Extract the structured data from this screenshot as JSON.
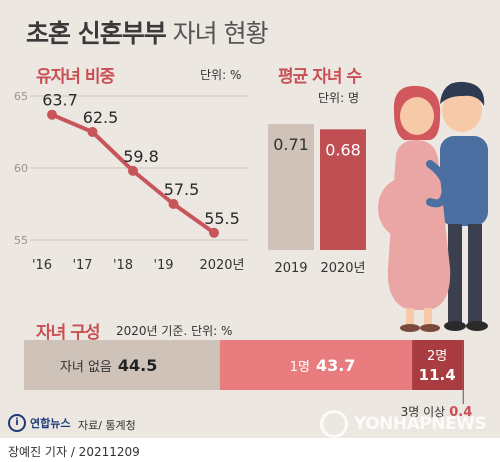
{
  "title": {
    "bold": "초혼 신혼부부",
    "light": "자녀 현황"
  },
  "colors": {
    "accent": "#c84f54",
    "line": "#c8555a",
    "grey_bar": "#cfc3b9",
    "red_bar": "#c04f54",
    "pink_bar": "#e87c7e",
    "dark_red": "#a83c41",
    "background": "#ece7e1"
  },
  "chart_data": [
    {
      "type": "line",
      "title": "유자녀 비중",
      "unit": "단위: %",
      "categories": [
        "'16",
        "'17",
        "'18",
        "'19",
        "2020년"
      ],
      "values": [
        63.7,
        62.5,
        59.8,
        57.5,
        55.5
      ],
      "ylim": [
        55,
        65
      ],
      "yticks": [
        55,
        60,
        65
      ],
      "grid": true
    },
    {
      "type": "bar",
      "title": "평균 자녀 수",
      "unit": "단위: 명",
      "categories": [
        "2019",
        "2020년"
      ],
      "values": [
        0.71,
        0.68
      ],
      "value_labels": [
        "0.71",
        "0.68"
      ]
    },
    {
      "type": "bar",
      "orientation": "horizontal-stacked",
      "title": "자녀 구성",
      "unit": "2020년 기준. 단위: %",
      "segments": [
        {
          "name": "자녀 없음",
          "value": 44.5,
          "label": "44.5"
        },
        {
          "name": "1명",
          "value": 43.7,
          "label": "43.7"
        },
        {
          "name": "2명",
          "value": 11.4,
          "label": "11.4"
        },
        {
          "name": "3명 이상",
          "value": 0.4,
          "label": "0.4"
        }
      ]
    }
  ],
  "footer": {
    "agency": "연합뉴스",
    "source": "자료/ 통계청",
    "watermark": "YONHAPNEWS",
    "byline": "장예진 기자 / 20211209"
  }
}
